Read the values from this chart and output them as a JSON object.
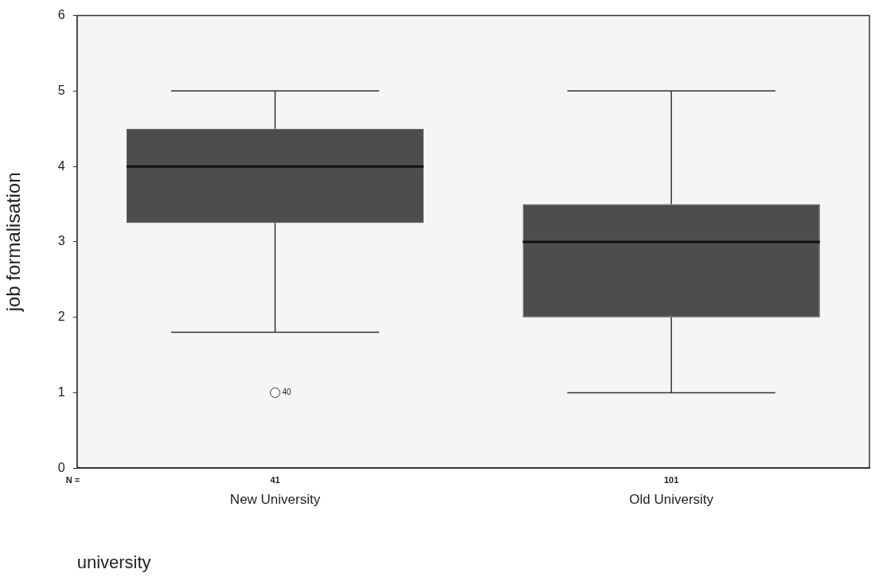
{
  "chart_data": {
    "type": "box",
    "xlabel": "university",
    "ylabel": "job formalisation",
    "categories": [
      "New University",
      "Old University"
    ],
    "boxes": [
      {
        "low": 1.8,
        "q1": 3.25,
        "median": 4,
        "q3": 4.5,
        "high": 5,
        "outliers": [
          1
        ]
      },
      {
        "low": 1,
        "q1": 2,
        "median": 3,
        "q3": 3.5,
        "high": 5
      }
    ],
    "color": "#4d4d4d",
    "ylim": [
      0,
      6
    ],
    "yticks": [
      0,
      1,
      2,
      3,
      4,
      5,
      6
    ],
    "grid": false,
    "legend": false,
    "annotations": [
      "N =",
      "41",
      "101",
      "40"
    ]
  }
}
